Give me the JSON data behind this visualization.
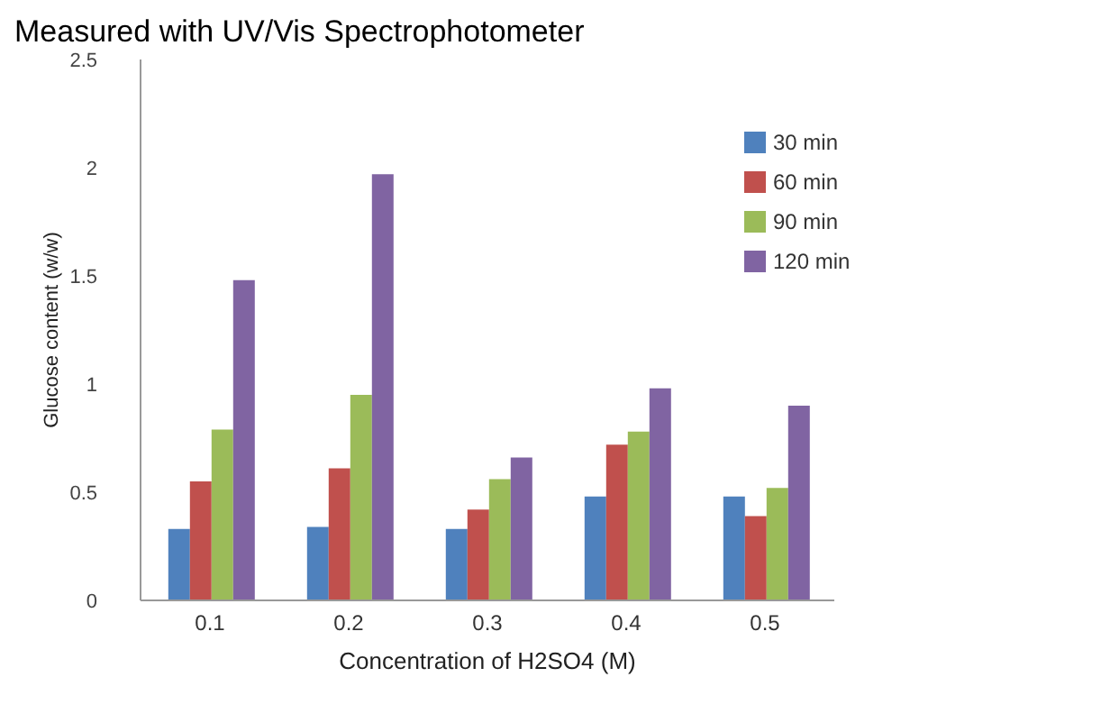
{
  "chart_data": {
    "type": "bar",
    "title": "Measured with UV/Vis Spectrophotometer",
    "xlabel": "Concentration of H2SO4 (M)",
    "ylabel": "Glucose content (w/w)",
    "categories": [
      "0.1",
      "0.2",
      "0.3",
      "0.4",
      "0.5"
    ],
    "series": [
      {
        "name": "30 min",
        "color": "#4f81bd",
        "values": [
          0.33,
          0.34,
          0.33,
          0.48,
          0.48
        ]
      },
      {
        "name": "60 min",
        "color": "#c0504d",
        "values": [
          0.55,
          0.61,
          0.42,
          0.72,
          0.39
        ]
      },
      {
        "name": "90 min",
        "color": "#9bbb59",
        "values": [
          0.79,
          0.95,
          0.56,
          0.78,
          0.52
        ]
      },
      {
        "name": "120 min",
        "color": "#8064a2",
        "values": [
          1.48,
          1.97,
          0.66,
          0.98,
          0.9
        ]
      }
    ],
    "ylim": [
      0,
      2.5
    ],
    "yticks": [
      0,
      0.5,
      1,
      1.5,
      2,
      2.5
    ],
    "grid": false,
    "legend": "top right"
  }
}
